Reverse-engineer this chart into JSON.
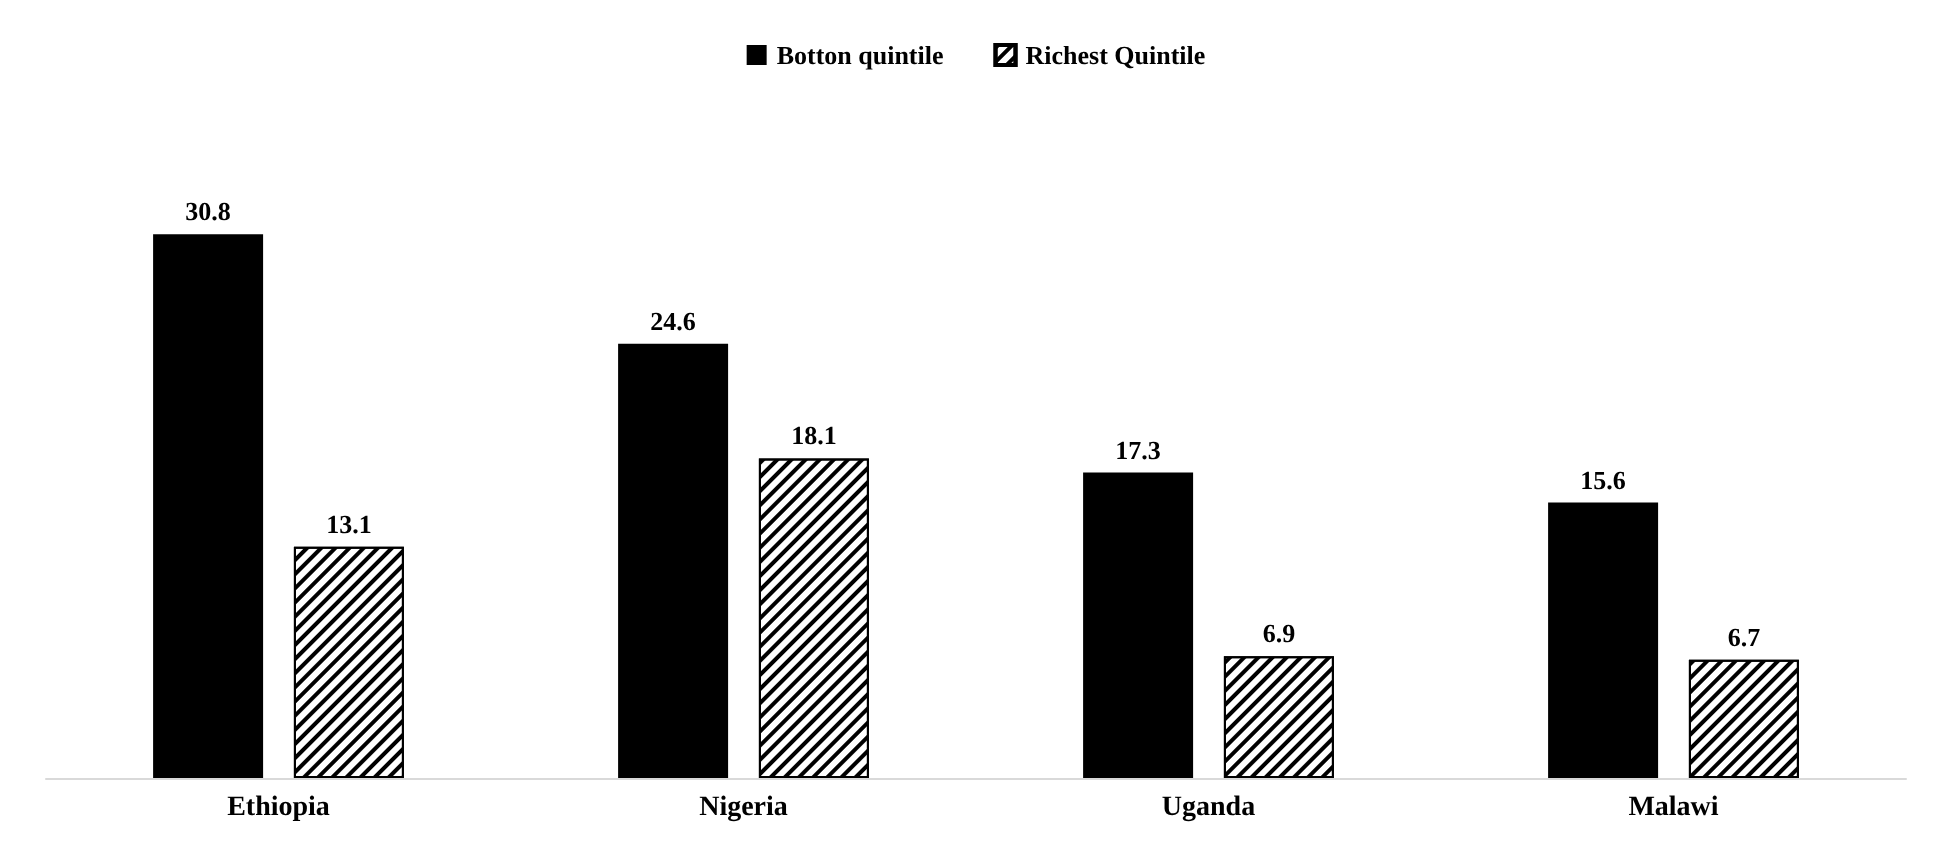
{
  "chart_data": {
    "type": "bar",
    "categories": [
      "Ethiopia",
      "Nigeria",
      "Uganda",
      "Malawi"
    ],
    "series": [
      {
        "name": "Botton quintile",
        "color": "#000000",
        "values": [
          30.8,
          24.6,
          17.3,
          15.6
        ]
      },
      {
        "name": "Richest Quintile",
        "color": "#000000",
        "values": [
          13.1,
          18.1,
          6.9,
          6.7
        ]
      }
    ],
    "data_labels": true,
    "legend": "top"
  }
}
